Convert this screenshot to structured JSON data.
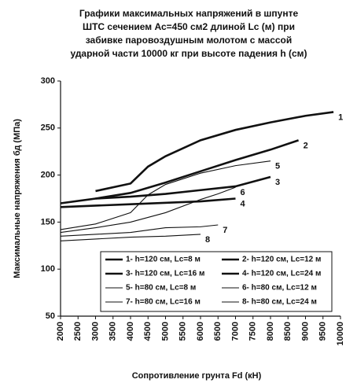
{
  "chart_data": {
    "type": "line",
    "title": [
      "Графики максимальных напряжений в шпунте",
      "ШТС сечением Ас=450 см2  длиной Lc (м) при",
      "забивке паровоздушным молотом с массой",
      "ударной части 10000 кг при высоте падения h (см)"
    ],
    "x_label": "Сопротивление грунта Fd (кН)",
    "y_label": "Максимальные напряжения бд   (МПа)",
    "xlim": [
      2000,
      10000
    ],
    "xticks": [
      2000,
      2500,
      3000,
      3500,
      4000,
      4500,
      5000,
      5500,
      6000,
      6500,
      7000,
      7500,
      8000,
      8500,
      9000,
      9500,
      10000
    ],
    "ylim": [
      50,
      300
    ],
    "yticks": [
      50,
      100,
      150,
      200,
      250,
      300
    ],
    "series": [
      {
        "name": "1- h=120 см, Lc=8 м",
        "label": "1",
        "color": "#111",
        "linewidth": 2.6,
        "x": [
          3000,
          4000,
          4500,
          5000,
          6000,
          7000,
          8000,
          9000,
          9800
        ],
        "values": [
          183,
          191,
          209,
          220,
          237,
          248,
          256,
          263,
          267
        ]
      },
      {
        "name": "2- h=120 см, Lc=12 м",
        "label": "2",
        "color": "#111",
        "linewidth": 2.6,
        "x": [
          3000,
          4000,
          5000,
          6000,
          7000,
          8000,
          8800
        ],
        "values": [
          175,
          181,
          192,
          204,
          216,
          227,
          237
        ]
      },
      {
        "name": "3- h=120 см, Lc=16 м",
        "label": "3",
        "color": "#111",
        "linewidth": 2.6,
        "x": [
          2000,
          3000,
          4000,
          5000,
          6000,
          7000,
          8000
        ],
        "values": [
          170,
          175,
          177,
          180,
          184,
          188,
          198
        ]
      },
      {
        "name": "4- h=120 см, Lc=24 м",
        "label": "4",
        "color": "#111",
        "linewidth": 2.6,
        "x": [
          2000,
          4000,
          6000,
          7000
        ],
        "values": [
          166,
          169,
          172,
          175
        ]
      },
      {
        "name": "5- h=80 см, Lc=8 м",
        "label": "5",
        "color": "#111",
        "linewidth": 1.1,
        "x": [
          2000,
          3000,
          4000,
          4500,
          5000,
          6000,
          7000,
          8000
        ],
        "values": [
          142,
          148,
          160,
          179,
          190,
          202,
          210,
          215
        ]
      },
      {
        "name": "6- h=80 см, Lc=12 м",
        "label": "6",
        "color": "#111",
        "linewidth": 1.1,
        "x": [
          2000,
          3000,
          4000,
          5000,
          6000,
          6500,
          7000
        ],
        "values": [
          139,
          144,
          150,
          160,
          174,
          180,
          187
        ]
      },
      {
        "name": "7- h=80 см, Lc=16 м",
        "label": "7",
        "color": "#111",
        "linewidth": 1.1,
        "x": [
          2000,
          3000,
          4000,
          5000,
          6000,
          6500
        ],
        "values": [
          135,
          137,
          139,
          144,
          145,
          147
        ]
      },
      {
        "name": "8- h=80 см, Lc=24 м",
        "label": "8",
        "color": "#111",
        "linewidth": 1.1,
        "x": [
          2000,
          3000,
          4000,
          5000,
          6000
        ],
        "values": [
          130,
          132,
          134,
          135,
          137
        ]
      }
    ]
  }
}
